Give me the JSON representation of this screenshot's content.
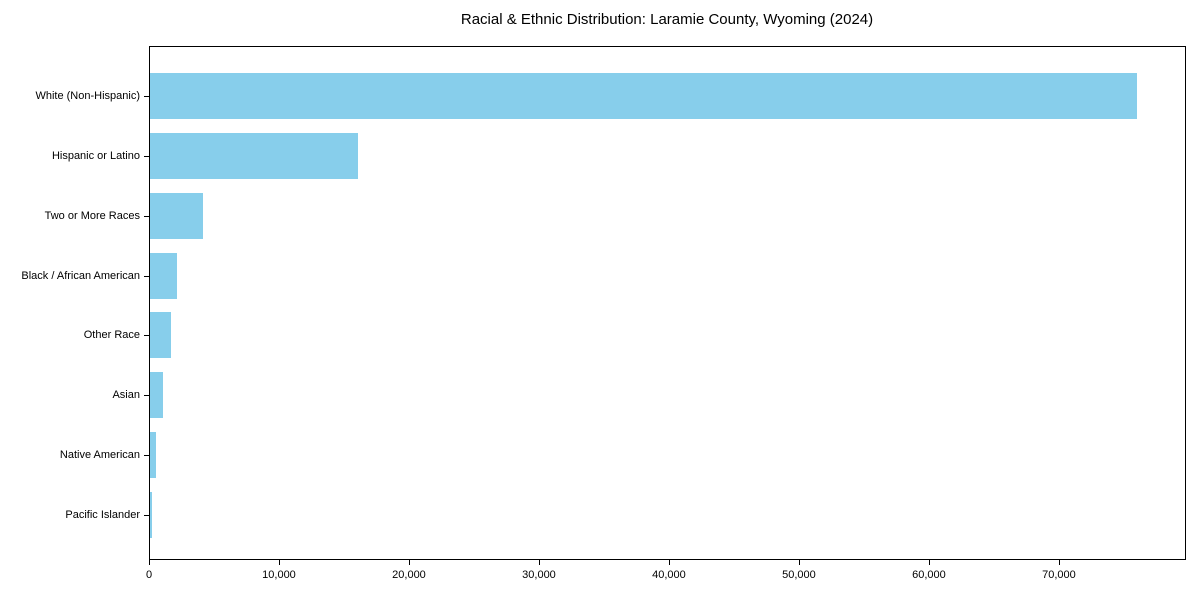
{
  "chart_data": {
    "type": "bar",
    "orientation": "horizontal",
    "title": "Racial & Ethnic Distribution: Laramie County, Wyoming (2024)",
    "categories": [
      "White (Non-Hispanic)",
      "Hispanic or Latino",
      "Two or More Races",
      "Black / African American",
      "Other Race",
      "Asian",
      "Native American",
      "Pacific Islander"
    ],
    "values": [
      75900,
      16000,
      4100,
      2100,
      1600,
      1000,
      500,
      150
    ],
    "xlabel": "",
    "ylabel": "",
    "xlim": [
      0,
      79695
    ],
    "x_ticks": [
      0,
      10000,
      20000,
      30000,
      40000,
      50000,
      60000,
      70000
    ],
    "x_tick_labels": [
      "0",
      "10,000",
      "20,000",
      "30,000",
      "40,000",
      "50,000",
      "60,000",
      "70,000"
    ],
    "bar_color": "#87CEEB",
    "frame_color": "#000000",
    "text_color": "#000000",
    "background_color": "#FFFFFF",
    "grid": false,
    "legend": null
  }
}
